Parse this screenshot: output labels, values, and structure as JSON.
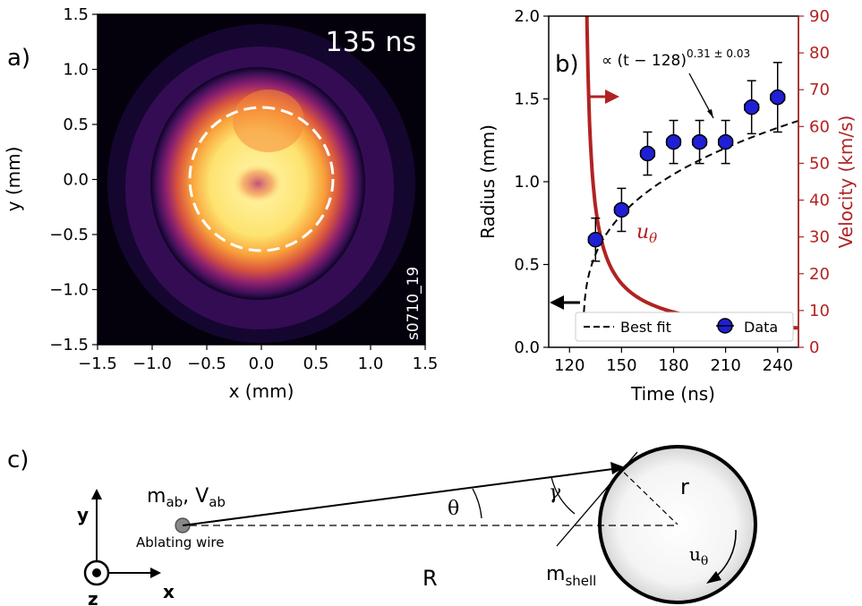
{
  "panel_a": {
    "label": "a)",
    "time_label": "135 ns",
    "shot_id": "s0710_19",
    "xlabel": "x (mm)",
    "ylabel": "y (mm)",
    "xticks": [
      "−1.5",
      "−1.0",
      "−0.5",
      "0.0",
      "0.5",
      "1.0",
      "1.5"
    ],
    "yticks": [
      "1.5",
      "1.0",
      "0.5",
      "0.0",
      "−0.5",
      "−1.0",
      "−1.5"
    ],
    "circle_radius_mm": 0.65
  },
  "panel_b": {
    "label": "b)",
    "fit_annotation": "∝ (t − 128)",
    "fit_exponent": "0.31 ± 0.03",
    "velocity_label": "u",
    "velocity_sub": "θ",
    "legend_fit": "Best fit",
    "legend_data": "Data"
  },
  "chart_data": {
    "type": "scatter",
    "xlabel": "Time (ns)",
    "ylabel": "Radius (mm)",
    "y2label": "Velocity (km/s)",
    "xlim": [
      108,
      252
    ],
    "ylim": [
      0,
      2.0
    ],
    "y2lim": [
      0,
      90
    ],
    "xticks": [
      120,
      150,
      180,
      210,
      240
    ],
    "yticks": [
      0.0,
      0.5,
      1.0,
      1.5,
      2.0
    ],
    "y2ticks": [
      0,
      10,
      20,
      30,
      40,
      50,
      60,
      70,
      80,
      90
    ],
    "legend_placement": "bottom",
    "series": [
      {
        "name": "Data",
        "x": [
          135,
          150,
          165,
          180,
          195,
          210,
          225,
          240
        ],
        "y": [
          0.65,
          0.83,
          1.17,
          1.24,
          1.24,
          1.24,
          1.45,
          1.51
        ],
        "yerr": [
          0.13,
          0.13,
          0.13,
          0.13,
          0.13,
          0.13,
          0.16,
          0.21
        ],
        "xerr": [
          4,
          4,
          4,
          4,
          4,
          4,
          4,
          4
        ]
      },
      {
        "name": "Best fit",
        "t0": 128,
        "exponent": 0.31,
        "coef": 0.307
      },
      {
        "name": "uθ",
        "t0": 128,
        "exponent": -0.69,
        "coef": 146.2
      }
    ]
  },
  "panel_c": {
    "label": "c)",
    "mass_label": "m",
    "mass_sub": "ab",
    "vel_label": "V",
    "vel_sub": "ab",
    "wire_label": "Ablating wire",
    "theta": "θ",
    "gamma": "γ",
    "R": "R",
    "r": "r",
    "shell_label": "m",
    "shell_sub": "shell",
    "u_label": "u",
    "u_sub": "θ",
    "axis_x": "x",
    "axis_y": "y",
    "axis_z": "z"
  }
}
